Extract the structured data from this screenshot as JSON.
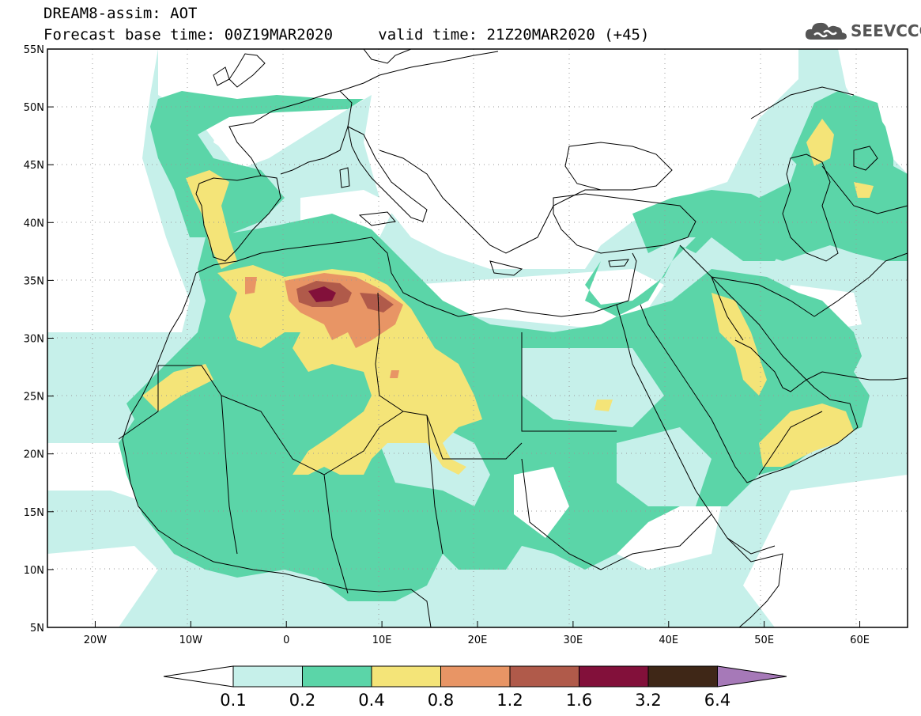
{
  "header": {
    "title": "DREAM8-assim: AOT",
    "base_time_label": "Forecast base time: 00Z19MAR2020",
    "valid_time_label": "valid time: 21Z20MAR2020 (+45)"
  },
  "logo": {
    "text": "SEEVCCC",
    "icon": "cloud-icon"
  },
  "map": {
    "lon_range": [
      -25,
      65
    ],
    "lat_range": [
      5,
      55
    ],
    "lat_ticks": [
      {
        "value": 55,
        "label": "55N"
      },
      {
        "value": 50,
        "label": "50N"
      },
      {
        "value": 45,
        "label": "45N"
      },
      {
        "value": 40,
        "label": "40N"
      },
      {
        "value": 35,
        "label": "35N"
      },
      {
        "value": 30,
        "label": "30N"
      },
      {
        "value": 25,
        "label": "25N"
      },
      {
        "value": 20,
        "label": "20N"
      },
      {
        "value": 15,
        "label": "15N"
      },
      {
        "value": 10,
        "label": "10N"
      },
      {
        "value": 5,
        "label": "5N"
      }
    ],
    "lon_ticks": [
      {
        "value": -20,
        "label": "20W"
      },
      {
        "value": -10,
        "label": "10W"
      },
      {
        "value": 0,
        "label": "0"
      },
      {
        "value": 10,
        "label": "10E"
      },
      {
        "value": 20,
        "label": "20E"
      },
      {
        "value": 30,
        "label": "30E"
      },
      {
        "value": 40,
        "label": "40E"
      },
      {
        "value": 50,
        "label": "50E"
      },
      {
        "value": 60,
        "label": "60E"
      }
    ],
    "grid": true
  },
  "colorbar": {
    "levels": [
      "0.1",
      "0.2",
      "0.4",
      "0.8",
      "1.2",
      "1.6",
      "3.2",
      "6.4"
    ],
    "colors": [
      "#ffffff",
      "#c6f0ea",
      "#5bd5a8",
      "#f4e478",
      "#e89565",
      "#b05a4a",
      "#82103a",
      "#3f2717",
      "#a679b8"
    ]
  }
}
